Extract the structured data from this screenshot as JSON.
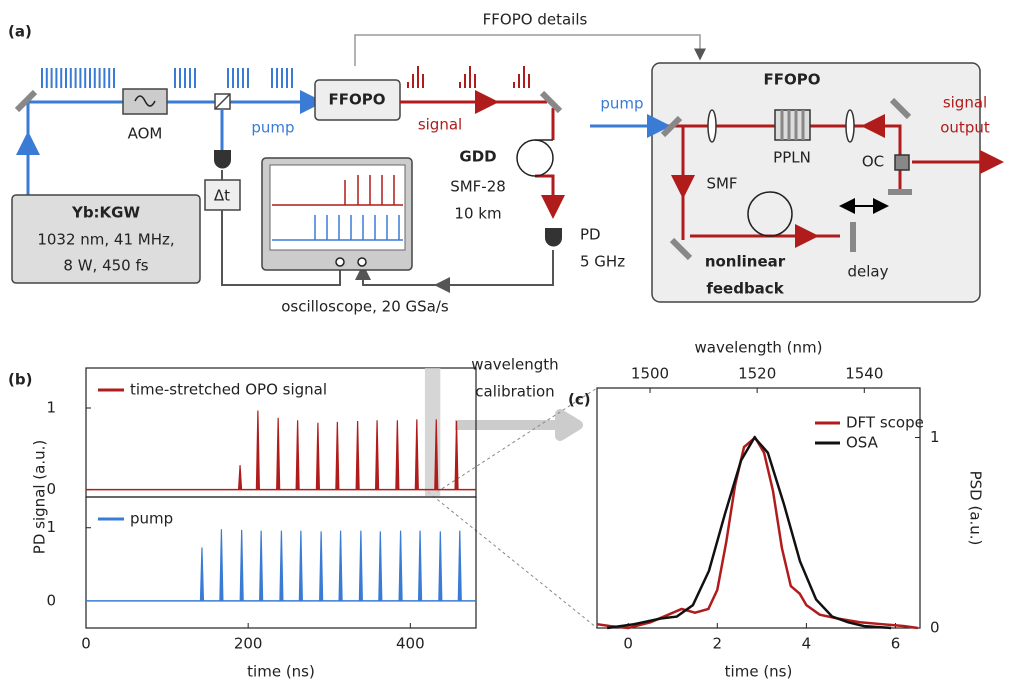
{
  "diagram": {
    "panel_label": "(a)",
    "details_label": "FFOPO details",
    "aom": "AOM",
    "pump": "pump",
    "ffopo": "FFOPO",
    "signal": "signal",
    "gdd": "GDD",
    "fiber": "SMF-28",
    "length": "10 km",
    "pd": "PD",
    "pd_bw": "5 GHz",
    "delay_t": "Δt",
    "laser": "Yb:KGW",
    "laser_line1": "1032 nm, 41 MHz,",
    "laser_line2": "8 W, 450 fs",
    "scope": "oscilloscope, 20 GSa/s",
    "detail_pump": "pump",
    "detail_title": "FFOPO",
    "ppln": "PPLN",
    "oc": "OC",
    "smf": "SMF",
    "feedback_line1": "nonlinear",
    "feedback_line2": "feedback",
    "delay": "delay",
    "output_line1": "signal",
    "output_line2": "output"
  },
  "annotation": {
    "line1": "wavelength",
    "line2": "calibration"
  },
  "chart_data": [
    {
      "type": "pulse",
      "panel_label": "(b)",
      "ylabel": "PD signal (a.u.)",
      "xlim": [
        0,
        481
      ],
      "ylim": [
        -0.09,
        1.49
      ],
      "yticks": [
        0,
        1
      ],
      "series": [
        {
          "name": "time-stretched OPO signal",
          "color": "#b01c1c",
          "x": [
            190,
            212,
            237,
            261,
            286,
            310,
            335,
            359,
            384,
            408,
            432,
            457
          ],
          "values": [
            0.3,
            0.97,
            0.88,
            0.85,
            0.82,
            0.83,
            0.84,
            0.85,
            0.85,
            0.86,
            0.86,
            0.84
          ]
        }
      ]
    },
    {
      "type": "pulse",
      "xlabel": "time (ns)",
      "xlim": [
        0,
        481
      ],
      "ylim": [
        -0.37,
        1.42
      ],
      "xticks": [
        0,
        200,
        400
      ],
      "yticks": [
        0,
        1
      ],
      "series": [
        {
          "name": "pump",
          "color": "#3a7bd5",
          "x": [
            143,
            167,
            192,
            216,
            241,
            265,
            290,
            314,
            339,
            363,
            388,
            412,
            437,
            461
          ],
          "values": [
            0.73,
            0.98,
            0.97,
            0.96,
            0.96,
            0.96,
            0.95,
            0.96,
            0.96,
            0.95,
            0.96,
            0.96,
            0.95,
            0.96
          ]
        }
      ]
    },
    {
      "type": "line",
      "panel_label": "(c)",
      "xlabel": "time (ns)",
      "x2label": "wavelength (nm)",
      "y2label": "PSD (a.u.)",
      "xlim": [
        -0.7,
        6.55
      ],
      "xticks": [
        0,
        2,
        4,
        6
      ],
      "x2lim": [
        1490.1,
        1550.4
      ],
      "x2ticks": [
        1500,
        1520,
        1540
      ],
      "y2lim": [
        0,
        1.26
      ],
      "y2ticks": [
        0,
        1
      ],
      "legend": "upper right",
      "series": [
        {
          "name": "DFT scope",
          "color": "#b01c1c",
          "axis": "y2",
          "x": [
            -0.7,
            -0.4,
            0,
            0.5,
            0.9,
            1.2,
            1.5,
            1.8,
            2.0,
            2.2,
            2.4,
            2.6,
            2.85,
            3.05,
            3.25,
            3.45,
            3.65,
            3.85,
            4.0,
            4.3,
            4.7,
            5.2,
            5.7,
            6.2,
            6.5
          ],
          "values": [
            0.02,
            0.01,
            0.0,
            0.03,
            0.07,
            0.1,
            0.08,
            0.1,
            0.2,
            0.45,
            0.75,
            0.95,
            1.0,
            0.92,
            0.72,
            0.42,
            0.22,
            0.18,
            0.12,
            0.07,
            0.05,
            0.03,
            0.02,
            0.01,
            0.0
          ]
        },
        {
          "name": "OSA",
          "color": "#111111",
          "axis": "y2",
          "xaxis": "x2",
          "x": [
            1492,
            1497,
            1502,
            1505,
            1508,
            1511,
            1514,
            1517,
            1519.5,
            1522,
            1525,
            1528,
            1531,
            1534,
            1537,
            1540,
            1545
          ],
          "values": [
            0,
            0.02,
            0.05,
            0.06,
            0.12,
            0.3,
            0.6,
            0.88,
            1.0,
            0.92,
            0.65,
            0.35,
            0.15,
            0.06,
            0.03,
            0.01,
            0
          ]
        }
      ]
    }
  ]
}
